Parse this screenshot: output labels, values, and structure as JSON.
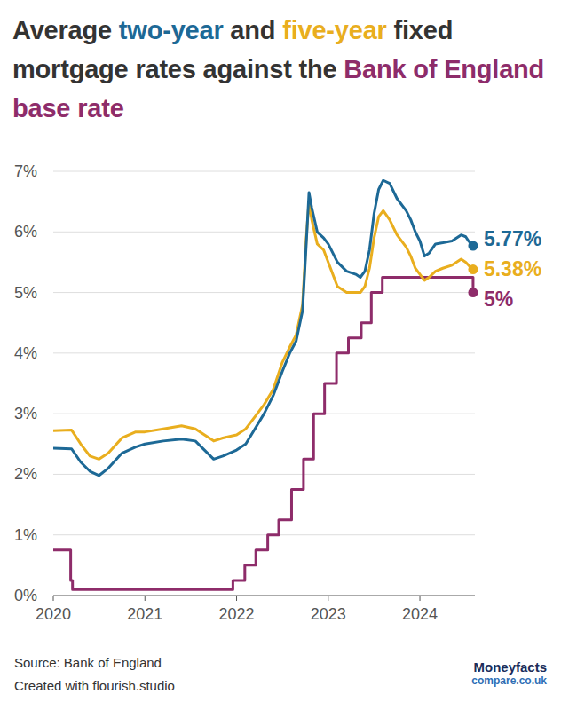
{
  "chart_data": {
    "type": "line",
    "title": "Average two-year and five-year fixed mortgage rates against the Bank of England base rate",
    "source": "Source: Bank of England",
    "credit": "Created with flourish.studio",
    "logo": {
      "line1": "Moneyfacts",
      "line2": "compare.co.uk"
    },
    "xlim": [
      2020,
      2024.6
    ],
    "xticks": [
      2020,
      2021,
      2022,
      2023,
      2024
    ],
    "ylim": [
      0,
      7
    ],
    "yticks": [
      {
        "value": 0,
        "label": "0%"
      },
      {
        "value": 1,
        "label": "1%"
      },
      {
        "value": 2,
        "label": "2%"
      },
      {
        "value": 3,
        "label": "3%"
      },
      {
        "value": 4,
        "label": "4%"
      },
      {
        "value": 5,
        "label": "5%"
      },
      {
        "value": 6,
        "label": "6%"
      },
      {
        "value": 7,
        "label": "7%"
      }
    ],
    "grid": true,
    "series": [
      {
        "name": "two-year",
        "color": "#1d6996",
        "line_style": "solid",
        "marker": "end",
        "end_label": "5.77%",
        "x": [
          2020.0,
          2020.2,
          2020.3,
          2020.4,
          2020.5,
          2020.6,
          2020.75,
          2020.9,
          2021.0,
          2021.2,
          2021.4,
          2021.55,
          2021.65,
          2021.75,
          2021.85,
          2022.0,
          2022.1,
          2022.2,
          2022.3,
          2022.4,
          2022.5,
          2022.58,
          2022.65,
          2022.72,
          2022.76,
          2022.79,
          2022.82,
          2022.88,
          2022.95,
          2023.0,
          2023.1,
          2023.2,
          2023.3,
          2023.35,
          2023.4,
          2023.45,
          2023.5,
          2023.55,
          2023.6,
          2023.67,
          2023.75,
          2023.85,
          2023.9,
          2023.95,
          2024.0,
          2024.05,
          2024.1,
          2024.17,
          2024.25,
          2024.35,
          2024.45,
          2024.5,
          2024.53,
          2024.58
        ],
        "values": [
          2.43,
          2.42,
          2.2,
          2.05,
          1.98,
          2.1,
          2.35,
          2.45,
          2.5,
          2.55,
          2.58,
          2.55,
          2.4,
          2.25,
          2.3,
          2.4,
          2.5,
          2.75,
          3.0,
          3.3,
          3.7,
          4.0,
          4.2,
          4.7,
          5.8,
          6.65,
          6.4,
          6.0,
          5.9,
          5.8,
          5.5,
          5.35,
          5.3,
          5.25,
          5.35,
          5.7,
          6.3,
          6.7,
          6.85,
          6.8,
          6.55,
          6.35,
          6.2,
          6.0,
          5.85,
          5.6,
          5.65,
          5.8,
          5.82,
          5.85,
          5.95,
          5.92,
          5.85,
          5.77
        ]
      },
      {
        "name": "five-year",
        "color": "#e9ae1e",
        "line_style": "solid",
        "marker": "end",
        "end_label": "5.38%",
        "x": [
          2020.0,
          2020.2,
          2020.3,
          2020.4,
          2020.5,
          2020.6,
          2020.75,
          2020.9,
          2021.0,
          2021.2,
          2021.4,
          2021.55,
          2021.65,
          2021.75,
          2021.85,
          2022.0,
          2022.1,
          2022.2,
          2022.3,
          2022.4,
          2022.5,
          2022.58,
          2022.65,
          2022.72,
          2022.76,
          2022.79,
          2022.82,
          2022.88,
          2022.95,
          2023.0,
          2023.1,
          2023.2,
          2023.3,
          2023.35,
          2023.4,
          2023.45,
          2023.5,
          2023.55,
          2023.6,
          2023.67,
          2023.75,
          2023.85,
          2023.9,
          2023.95,
          2024.0,
          2024.05,
          2024.1,
          2024.17,
          2024.25,
          2024.35,
          2024.45,
          2024.5,
          2024.53,
          2024.58
        ],
        "values": [
          2.72,
          2.73,
          2.5,
          2.3,
          2.25,
          2.35,
          2.6,
          2.7,
          2.7,
          2.75,
          2.8,
          2.75,
          2.65,
          2.55,
          2.6,
          2.65,
          2.75,
          2.95,
          3.15,
          3.4,
          3.85,
          4.1,
          4.3,
          4.8,
          5.9,
          6.5,
          6.2,
          5.8,
          5.7,
          5.5,
          5.1,
          5.0,
          5.0,
          5.0,
          5.1,
          5.4,
          5.9,
          6.25,
          6.35,
          6.2,
          5.95,
          5.75,
          5.6,
          5.4,
          5.3,
          5.2,
          5.25,
          5.35,
          5.4,
          5.45,
          5.55,
          5.5,
          5.45,
          5.38
        ]
      },
      {
        "name": "Bank of England base rate",
        "color": "#8e2c6a",
        "line_style": "step",
        "marker": "end",
        "end_label": "5%",
        "x": [
          2020.0,
          2020.19,
          2020.21,
          2021.96,
          2022.09,
          2022.21,
          2022.34,
          2022.46,
          2022.6,
          2022.73,
          2022.84,
          2022.96,
          2023.09,
          2023.22,
          2023.36,
          2023.47,
          2023.59,
          2024.58
        ],
        "values": [
          0.75,
          0.25,
          0.1,
          0.25,
          0.5,
          0.75,
          1.0,
          1.25,
          1.75,
          2.25,
          3.0,
          3.5,
          4.0,
          4.25,
          4.5,
          5.0,
          5.25,
          5.0
        ]
      }
    ]
  }
}
